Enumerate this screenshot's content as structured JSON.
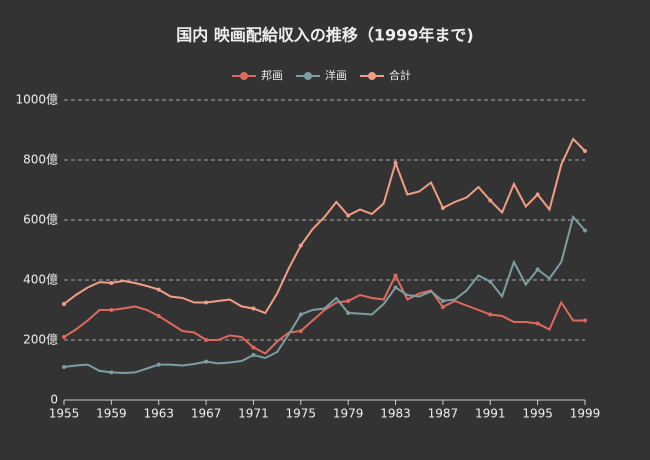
{
  "chart_data": {
    "type": "line",
    "title": "国内 映画配給収入の推移（1999年まで)",
    "x": [
      1955,
      1956,
      1957,
      1958,
      1959,
      1960,
      1961,
      1962,
      1963,
      1964,
      1965,
      1966,
      1967,
      1968,
      1969,
      1970,
      1971,
      1972,
      1973,
      1974,
      1975,
      1976,
      1977,
      1978,
      1979,
      1980,
      1981,
      1982,
      1983,
      1984,
      1985,
      1986,
      1987,
      1988,
      1989,
      1990,
      1991,
      1992,
      1993,
      1994,
      1995,
      1996,
      1997,
      1998,
      1999
    ],
    "series": [
      {
        "name": "邦画",
        "color": "#e0695f",
        "values": [
          210,
          235,
          265,
          300,
          300,
          305,
          312,
          300,
          280,
          255,
          230,
          225,
          200,
          200,
          215,
          210,
          175,
          155,
          195,
          225,
          230,
          265,
          300,
          325,
          330,
          350,
          340,
          335,
          415,
          335,
          355,
          365,
          310,
          330,
          315,
          300,
          285,
          280,
          260,
          260,
          255,
          235,
          325,
          265,
          265
        ]
      },
      {
        "name": "洋画",
        "color": "#7b9fa3",
        "values": [
          110,
          115,
          118,
          97,
          92,
          90,
          92,
          105,
          118,
          118,
          115,
          120,
          128,
          122,
          125,
          130,
          150,
          140,
          160,
          220,
          285,
          300,
          305,
          340,
          290,
          288,
          285,
          320,
          375,
          350,
          345,
          362,
          330,
          335,
          365,
          415,
          395,
          345,
          460,
          385,
          435,
          405,
          460,
          610,
          565
        ]
      },
      {
        "name": "合計",
        "color": "#f29d85",
        "values": [
          320,
          350,
          375,
          393,
          390,
          397,
          390,
          380,
          368,
          345,
          340,
          325,
          325,
          330,
          335,
          312,
          305,
          290,
          355,
          440,
          515,
          570,
          610,
          660,
          615,
          635,
          620,
          655,
          790,
          685,
          695,
          725,
          640,
          660,
          675,
          710,
          665,
          625,
          720,
          645,
          685,
          635,
          785,
          870,
          830
        ]
      }
    ],
    "xlim": [
      1955,
      1999
    ],
    "xticks": [
      1955,
      1959,
      1963,
      1967,
      1971,
      1975,
      1979,
      1983,
      1987,
      1991,
      1995,
      1999
    ],
    "ylim": [
      0,
      1000
    ],
    "yticks": [
      0,
      {
        "value": 200,
        "label": "200億"
      },
      {
        "value": 400,
        "label": "400億"
      },
      {
        "value": 600,
        "label": "600億"
      },
      {
        "value": 800,
        "label": "800億"
      },
      {
        "value": 1000,
        "label": "1000億"
      }
    ],
    "grid": true
  }
}
